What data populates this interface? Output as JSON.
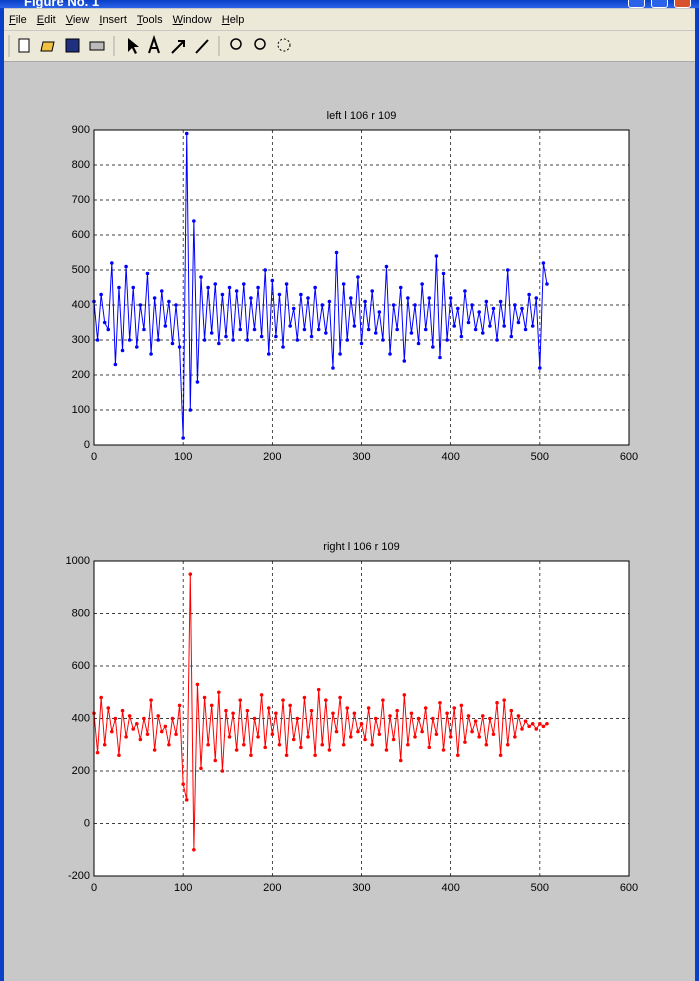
{
  "window": {
    "title": "Figure No. 1"
  },
  "menu": [
    "File",
    "Edit",
    "View",
    "Insert",
    "Tools",
    "Window",
    "Help"
  ],
  "chart_data": [
    {
      "type": "line",
      "title": "left l 106 r 109",
      "color": "#0000ff",
      "xlim": [
        0,
        600
      ],
      "xticks": [
        0,
        100,
        200,
        300,
        400,
        500,
        600
      ],
      "ylim": [
        0,
        900
      ],
      "yticks": [
        0,
        100,
        200,
        300,
        400,
        500,
        600,
        700,
        800,
        900
      ],
      "grid": true,
      "x": [
        0,
        4,
        8,
        12,
        16,
        20,
        24,
        28,
        32,
        36,
        40,
        44,
        48,
        52,
        56,
        60,
        64,
        68,
        72,
        76,
        80,
        84,
        88,
        92,
        96,
        100,
        104,
        108,
        112,
        116,
        120,
        124,
        128,
        132,
        136,
        140,
        144,
        148,
        152,
        156,
        160,
        164,
        168,
        172,
        176,
        180,
        184,
        188,
        192,
        196,
        200,
        204,
        208,
        212,
        216,
        220,
        224,
        228,
        232,
        236,
        240,
        244,
        248,
        252,
        256,
        260,
        264,
        268,
        272,
        276,
        280,
        284,
        288,
        292,
        296,
        300,
        304,
        308,
        312,
        316,
        320,
        324,
        328,
        332,
        336,
        340,
        344,
        348,
        352,
        356,
        360,
        364,
        368,
        372,
        376,
        380,
        384,
        388,
        392,
        396,
        400,
        404,
        408,
        412,
        416,
        420,
        424,
        428,
        432,
        436,
        440,
        444,
        448,
        452,
        456,
        460,
        464,
        468,
        472,
        476,
        480,
        484,
        488,
        492,
        496,
        500,
        504,
        508
      ],
      "values": [
        410,
        300,
        430,
        350,
        330,
        520,
        230,
        450,
        270,
        510,
        300,
        450,
        280,
        400,
        330,
        490,
        260,
        420,
        300,
        440,
        340,
        410,
        290,
        400,
        280,
        20,
        890,
        100,
        640,
        180,
        480,
        300,
        450,
        320,
        460,
        290,
        430,
        310,
        450,
        300,
        440,
        330,
        460,
        300,
        420,
        330,
        450,
        310,
        500,
        260,
        470,
        310,
        430,
        280,
        460,
        340,
        390,
        300,
        430,
        330,
        420,
        310,
        450,
        330,
        400,
        320,
        410,
        220,
        550,
        260,
        460,
        300,
        420,
        340,
        480,
        290,
        410,
        330,
        440,
        320,
        380,
        300,
        510,
        260,
        400,
        330,
        450,
        240,
        420,
        320,
        400,
        290,
        460,
        330,
        420,
        280,
        540,
        250,
        490,
        300,
        420,
        340,
        390,
        310,
        440,
        350,
        400,
        330,
        380,
        320,
        410,
        340,
        390,
        300,
        410,
        340,
        500,
        310,
        400,
        350,
        390,
        330,
        430,
        340,
        420,
        220,
        520,
        460
      ]
    },
    {
      "type": "line",
      "title": "right l 106 r 109",
      "color": "#ff0000",
      "xlim": [
        0,
        600
      ],
      "xticks": [
        0,
        100,
        200,
        300,
        400,
        500,
        600
      ],
      "ylim": [
        -200,
        1000
      ],
      "yticks": [
        -200,
        0,
        200,
        400,
        600,
        800,
        1000
      ],
      "grid": true,
      "x": [
        0,
        4,
        8,
        12,
        16,
        20,
        24,
        28,
        32,
        36,
        40,
        44,
        48,
        52,
        56,
        60,
        64,
        68,
        72,
        76,
        80,
        84,
        88,
        92,
        96,
        100,
        104,
        108,
        112,
        116,
        120,
        124,
        128,
        132,
        136,
        140,
        144,
        148,
        152,
        156,
        160,
        164,
        168,
        172,
        176,
        180,
        184,
        188,
        192,
        196,
        200,
        204,
        208,
        212,
        216,
        220,
        224,
        228,
        232,
        236,
        240,
        244,
        248,
        252,
        256,
        260,
        264,
        268,
        272,
        276,
        280,
        284,
        288,
        292,
        296,
        300,
        304,
        308,
        312,
        316,
        320,
        324,
        328,
        332,
        336,
        340,
        344,
        348,
        352,
        356,
        360,
        364,
        368,
        372,
        376,
        380,
        384,
        388,
        392,
        396,
        400,
        404,
        408,
        412,
        416,
        420,
        424,
        428,
        432,
        436,
        440,
        444,
        448,
        452,
        456,
        460,
        464,
        468,
        472,
        476,
        480,
        484,
        488,
        492,
        496,
        500,
        504,
        508
      ],
      "values": [
        420,
        270,
        480,
        300,
        440,
        350,
        400,
        260,
        430,
        330,
        410,
        360,
        380,
        320,
        400,
        340,
        470,
        280,
        410,
        350,
        370,
        300,
        400,
        340,
        450,
        150,
        90,
        950,
        -100,
        530,
        210,
        480,
        300,
        450,
        240,
        500,
        200,
        430,
        330,
        420,
        280,
        470,
        300,
        430,
        260,
        400,
        330,
        490,
        290,
        440,
        340,
        420,
        300,
        470,
        260,
        450,
        320,
        400,
        290,
        480,
        330,
        430,
        260,
        510,
        300,
        470,
        280,
        420,
        350,
        480,
        300,
        440,
        330,
        420,
        350,
        380,
        320,
        440,
        300,
        400,
        340,
        470,
        280,
        410,
        320,
        430,
        240,
        490,
        300,
        420,
        330,
        400,
        350,
        440,
        290,
        400,
        340,
        460,
        280,
        420,
        330,
        440,
        260,
        450,
        310,
        410,
        350,
        390,
        330,
        410,
        300,
        400,
        340,
        460,
        260,
        470,
        300,
        430,
        330,
        410,
        360,
        390,
        370,
        380,
        360,
        380,
        370,
        380
      ]
    }
  ]
}
